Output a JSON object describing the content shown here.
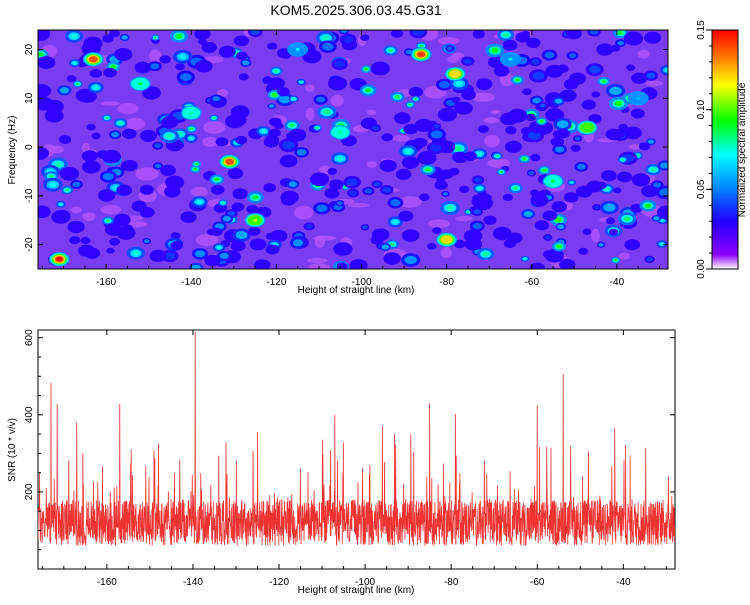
{
  "chart_data": [
    {
      "type": "heatmap",
      "title": "KOM5.2025.306.03.45.G31",
      "xlabel": "Height of straight line (km)",
      "ylabel": "Frequency (Hz)",
      "xlim": [
        -176,
        -28
      ],
      "ylim": [
        -25,
        24
      ],
      "xticks": [
        -160,
        -140,
        -120,
        -100,
        -80,
        -60,
        -40
      ],
      "yticks": [
        -20,
        -10,
        0,
        10,
        20
      ],
      "colorbar": {
        "label": "Normalized spectral amplitude",
        "range": [
          0,
          0.15
        ],
        "ticks": [
          "0.00",
          "0.05",
          "0.10",
          "0.15"
        ]
      },
      "peaks": [
        {
          "x": -171,
          "y": -23,
          "v": 0.15
        },
        {
          "x": -163,
          "y": 18,
          "v": 0.14
        },
        {
          "x": -131,
          "y": -3,
          "v": 0.14
        },
        {
          "x": -86,
          "y": 19,
          "v": 0.145
        },
        {
          "x": -78,
          "y": 15,
          "v": 0.12
        },
        {
          "x": -125,
          "y": -15,
          "v": 0.11
        },
        {
          "x": -55,
          "y": -7,
          "v": 0.09
        },
        {
          "x": -80,
          "y": -19,
          "v": 0.12
        },
        {
          "x": -47,
          "y": 4,
          "v": 0.1
        },
        {
          "x": -152,
          "y": 13,
          "v": 0.09
        },
        {
          "x": -140,
          "y": 7,
          "v": 0.08
        },
        {
          "x": -105,
          "y": 3,
          "v": 0.08
        },
        {
          "x": -65,
          "y": 18,
          "v": 0.07
        },
        {
          "x": -115,
          "y": 20,
          "v": 0.07
        },
        {
          "x": -35,
          "y": 10,
          "v": 0.06
        }
      ]
    },
    {
      "type": "line",
      "xlabel": "Height of straight line (km)",
      "ylabel": "SNR (10 * v/v)",
      "xlim": [
        -176,
        -28
      ],
      "ylim": [
        0,
        620
      ],
      "xticks": [
        -160,
        -140,
        -120,
        -100,
        -80,
        -60,
        -40
      ],
      "yticks": [
        200,
        400,
        600
      ],
      "series": [
        {
          "name": "SNR",
          "color": "#ee3333",
          "baseline": 120,
          "peaks": [
            {
              "x": -139.5,
              "y": 615
            },
            {
              "x": -54,
              "y": 505
            },
            {
              "x": -173,
              "y": 483
            },
            {
              "x": -157,
              "y": 428
            },
            {
              "x": -85,
              "y": 430
            },
            {
              "x": -79,
              "y": 402
            },
            {
              "x": -60,
              "y": 425
            },
            {
              "x": -107,
              "y": 400
            },
            {
              "x": -96,
              "y": 372
            },
            {
              "x": -42,
              "y": 365
            },
            {
              "x": -167,
              "y": 380
            },
            {
              "x": -125,
              "y": 355
            }
          ]
        }
      ]
    }
  ]
}
